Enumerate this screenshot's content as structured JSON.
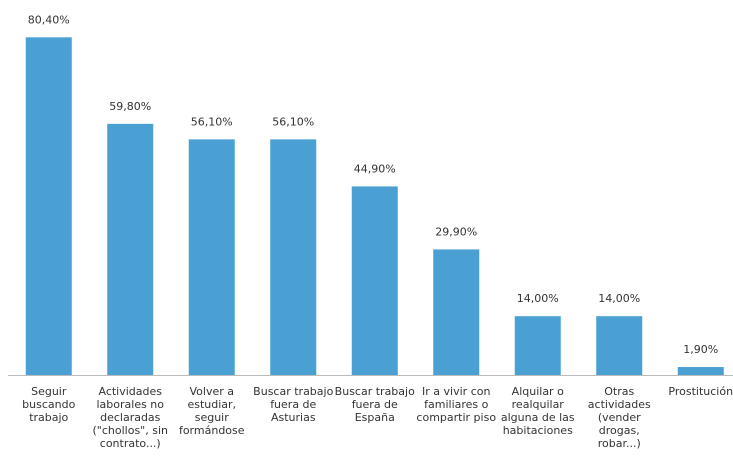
{
  "chart_data": {
    "type": "bar",
    "categories": [
      "Seguir buscando trabajo",
      "Actividades laborales no declaradas (\"chollos\", sin contrato...)",
      "Volver a estudiar, seguir formándose",
      "Buscar trabajo fuera de Asturias",
      "Buscar trabajo fuera de España",
      "Ir a vivir con familiares o compartir piso",
      "Alquilar o realquilar alguna de las habitaciones",
      "Otras actividades (vender drogas, robar...)",
      "Prostitución"
    ],
    "values": [
      80.4,
      59.8,
      56.1,
      56.1,
      44.9,
      29.9,
      14.0,
      14.0,
      1.9
    ],
    "value_labels": [
      "80,40%",
      "59,80%",
      "56,10%",
      "56,10%",
      "44,90%",
      "29,90%",
      "14,00%",
      "14,00%",
      "1,90%"
    ],
    "color": "#4a9fd3"
  }
}
